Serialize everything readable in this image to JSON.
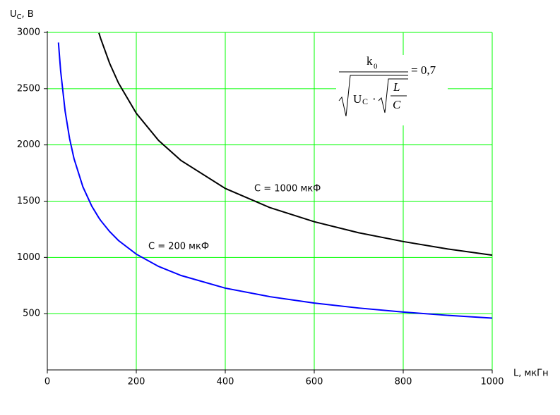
{
  "chart_data": {
    "type": "line",
    "y_label": "U",
    "y_label_sub": "C",
    "y_label_unit": ", B",
    "x_label": "L, мкГн",
    "x": [
      25,
      30,
      40,
      50,
      60,
      80,
      100,
      116,
      120,
      140,
      160,
      200,
      250,
      300,
      400,
      500,
      600,
      700,
      800,
      900,
      1000
    ],
    "series": [
      {
        "name": "C = 200 мкФ",
        "color": "#0000ff",
        "values": [
          2910,
          2656,
          2301,
          2058,
          1878,
          1627,
          1455,
          1351,
          1328,
          1230,
          1150,
          1029,
          920,
          840,
          727,
          651,
          594,
          550,
          514,
          485,
          460
        ]
      },
      {
        "name": "C = 1000 мкФ",
        "color": "#000000",
        "values": [
          null,
          null,
          null,
          null,
          null,
          null,
          null,
          2995,
          2945,
          2726,
          2550,
          2281,
          2040,
          1863,
          1613,
          1443,
          1317,
          1219,
          1141,
          1075,
          1020
        ]
      }
    ],
    "xlim": [
      0,
      1000
    ],
    "xticks": [
      0,
      200,
      400,
      600,
      800,
      1000
    ],
    "ylim": [
      0,
      3000
    ],
    "yticks": [
      500,
      1000,
      1500,
      2000,
      2500,
      3000
    ],
    "grid": true,
    "grid_color": "#00ff00",
    "formula": {
      "numerator": "k",
      "numerator_sub": "0",
      "denominator": "U",
      "denominator_sub": "C",
      "inner_top": "L",
      "inner_bottom": "C",
      "result": "= 0,7"
    }
  }
}
